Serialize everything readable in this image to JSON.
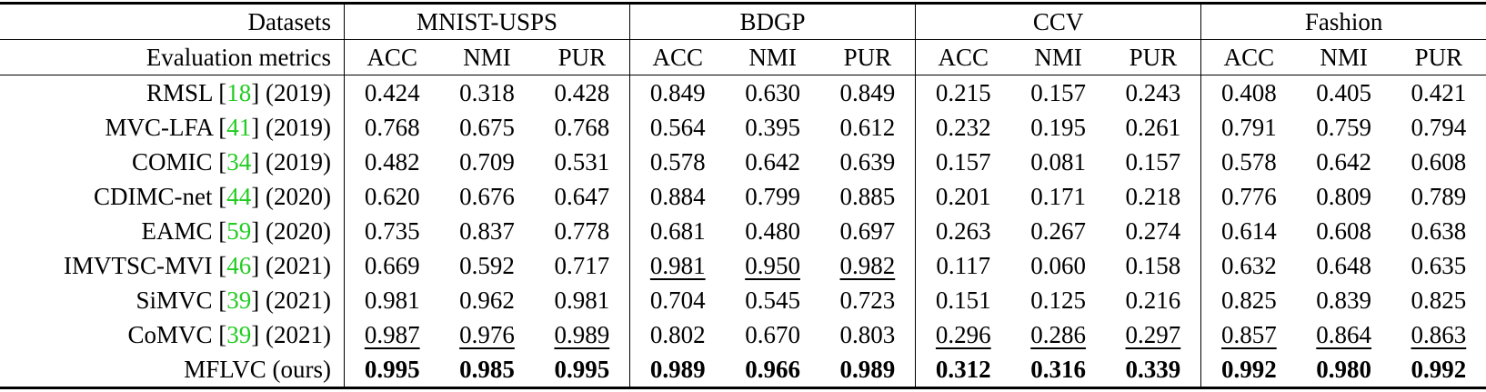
{
  "table": {
    "corner": [
      "Datasets",
      "Evaluation metrics"
    ],
    "datasets": [
      "MNIST-USPS",
      "BDGP",
      "CCV",
      "Fashion"
    ],
    "metrics": [
      "ACC",
      "NMI",
      "PUR"
    ],
    "rows": [
      {
        "label": [
          "RMSL [",
          "18",
          "] (2019)"
        ],
        "values": [
          "0.424",
          "0.318",
          "0.428",
          "0.849",
          "0.630",
          "0.849",
          "0.215",
          "0.157",
          "0.243",
          "0.408",
          "0.405",
          "0.421"
        ]
      },
      {
        "label": [
          "MVC-LFA [",
          "41",
          "] (2019)"
        ],
        "values": [
          "0.768",
          "0.675",
          "0.768",
          "0.564",
          "0.395",
          "0.612",
          "0.232",
          "0.195",
          "0.261",
          "0.791",
          "0.759",
          "0.794"
        ]
      },
      {
        "label": [
          "COMIC [",
          "34",
          "] (2019)"
        ],
        "values": [
          "0.482",
          "0.709",
          "0.531",
          "0.578",
          "0.642",
          "0.639",
          "0.157",
          "0.081",
          "0.157",
          "0.578",
          "0.642",
          "0.608"
        ]
      },
      {
        "label": [
          "CDIMC-net [",
          "44",
          "] (2020)"
        ],
        "values": [
          "0.620",
          "0.676",
          "0.647",
          "0.884",
          "0.799",
          "0.885",
          "0.201",
          "0.171",
          "0.218",
          "0.776",
          "0.809",
          "0.789"
        ]
      },
      {
        "label": [
          "EAMC [",
          "59",
          "] (2020)"
        ],
        "values": [
          "0.735",
          "0.837",
          "0.778",
          "0.681",
          "0.480",
          "0.697",
          "0.263",
          "0.267",
          "0.274",
          "0.614",
          "0.608",
          "0.638"
        ]
      },
      {
        "label": [
          "IMVTSC-MVI [",
          "46",
          "] (2021)"
        ],
        "values": [
          "0.669",
          "0.592",
          "0.717",
          "0.981",
          "0.950",
          "0.982",
          "0.117",
          "0.060",
          "0.158",
          "0.632",
          "0.648",
          "0.635"
        ],
        "underline": [
          false,
          false,
          false,
          true,
          true,
          true,
          false,
          false,
          false,
          false,
          false,
          false
        ]
      },
      {
        "label": [
          "SiMVC [",
          "39",
          "] (2021)"
        ],
        "values": [
          "0.981",
          "0.962",
          "0.981",
          "0.704",
          "0.545",
          "0.723",
          "0.151",
          "0.125",
          "0.216",
          "0.825",
          "0.839",
          "0.825"
        ]
      },
      {
        "label": [
          "CoMVC [",
          "39",
          "] (2021)"
        ],
        "values": [
          "0.987",
          "0.976",
          "0.989",
          "0.802",
          "0.670",
          "0.803",
          "0.296",
          "0.286",
          "0.297",
          "0.857",
          "0.864",
          "0.863"
        ],
        "underline": [
          true,
          true,
          true,
          false,
          false,
          false,
          true,
          true,
          true,
          true,
          true,
          true
        ]
      },
      {
        "label": [
          "MFLVC (ours)"
        ],
        "values": [
          "0.995",
          "0.985",
          "0.995",
          "0.989",
          "0.966",
          "0.989",
          "0.312",
          "0.316",
          "0.339",
          "0.992",
          "0.980",
          "0.992"
        ],
        "bold": true
      }
    ]
  }
}
